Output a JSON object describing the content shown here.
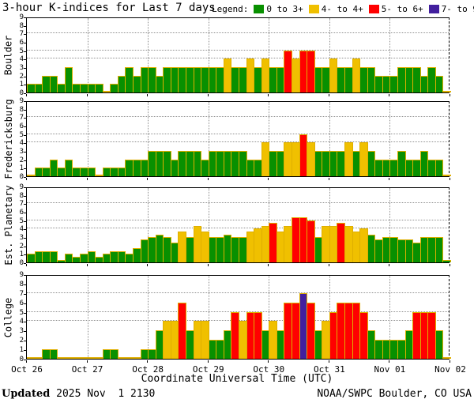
{
  "title": "3-hour K-indices for Last 7 days",
  "legend": {
    "label": "Legend:",
    "items": [
      {
        "label": "0 to 3+",
        "color": "#089000"
      },
      {
        "label": "4- to 4+",
        "color": "#f0c000"
      },
      {
        "label": "5- to 6+",
        "color": "#ff0000"
      },
      {
        "label": "7- to 9",
        "color": "#421f9e"
      }
    ]
  },
  "footer": {
    "updated_label": "Updated",
    "updated_value": " 2025 Nov  1 2130",
    "credit": "NOAA/SWPC Boulder, CO USA"
  },
  "chart_data": {
    "type": "bar",
    "title": "3-hour K-indices for Last 7 days",
    "xlabel": "Coordinate Universal Time (UTC)",
    "x_tick_labels": [
      "Oct 26",
      "Oct 27",
      "Oct 28",
      "Oct 29",
      "Oct 30",
      "Oct 31",
      "Nov 01",
      "Nov 02"
    ],
    "bars_per_day": 8,
    "interval_hours": 3,
    "ylim": [
      0,
      9
    ],
    "y_ticks": [
      0,
      1,
      2,
      3,
      4,
      5,
      6,
      7,
      8,
      9
    ],
    "y_gridlines": [
      4,
      5,
      7
    ],
    "grid": "dotted day boundaries vertical; dotted K=4,5,7 horizontal",
    "legend_position": "top-right",
    "color_rules": [
      {
        "range": "0 to 3+",
        "max": 3.4,
        "color": "#089000"
      },
      {
        "range": "4- to 4+",
        "max": 4.4,
        "color": "#f0c000"
      },
      {
        "range": "5- to 6+",
        "max": 6.4,
        "color": "#ff0000"
      },
      {
        "range": "7- to 9",
        "max": 9.0,
        "color": "#421f9e"
      }
    ],
    "panels": [
      {
        "station": "Boulder",
        "values": [
          1,
          1,
          2,
          2,
          1,
          3,
          1,
          1,
          1,
          1,
          0,
          1,
          2,
          3,
          2,
          3,
          3,
          2,
          3,
          3,
          3,
          3,
          3,
          3,
          3,
          3,
          4,
          3,
          3,
          4,
          3,
          4,
          3,
          3,
          5,
          4,
          5,
          5,
          3,
          3,
          4,
          3,
          3,
          4,
          3,
          3,
          2,
          2,
          2,
          3,
          3,
          3,
          2,
          3,
          2,
          0
        ]
      },
      {
        "station": "Fredericksburg",
        "values": [
          0,
          1,
          1,
          2,
          1,
          2,
          1,
          1,
          1,
          0,
          1,
          1,
          1,
          2,
          2,
          2,
          3,
          3,
          3,
          2,
          3,
          3,
          3,
          2,
          3,
          3,
          3,
          3,
          3,
          2,
          2,
          4,
          3,
          3,
          4,
          4,
          5,
          4,
          3,
          3,
          3,
          3,
          4,
          3,
          4,
          3,
          2,
          2,
          2,
          3,
          2,
          2,
          3,
          2,
          2,
          0
        ]
      },
      {
        "station": "Est. Planetary",
        "values": [
          1,
          1.3,
          1.3,
          1.3,
          0.3,
          1,
          0.7,
          1,
          1.3,
          0.7,
          1,
          1.3,
          1.3,
          1,
          1.7,
          2.7,
          3,
          3.3,
          3,
          2.3,
          3.7,
          3,
          4.3,
          3.7,
          3,
          3,
          3.3,
          3,
          3,
          3.7,
          4,
          4.3,
          4.7,
          3.7,
          4.3,
          5.3,
          5.3,
          5,
          3,
          4.3,
          4.3,
          4.7,
          4.3,
          3.7,
          4,
          3.3,
          2.7,
          3,
          3,
          2.7,
          2.7,
          2.3,
          3,
          3,
          3,
          0.3
        ]
      },
      {
        "station": "College",
        "values": [
          0,
          0,
          1,
          1,
          0,
          0,
          0,
          0,
          0,
          0,
          1,
          1,
          0,
          0,
          0,
          1,
          1,
          3,
          4,
          4,
          6,
          3,
          4,
          4,
          2,
          2,
          3,
          5,
          4,
          5,
          5,
          3,
          4,
          3,
          6,
          6,
          7,
          6,
          3,
          4,
          5,
          6,
          6,
          6,
          5,
          3,
          2,
          2,
          2,
          2,
          3,
          5,
          5,
          5,
          3,
          0
        ]
      }
    ]
  }
}
